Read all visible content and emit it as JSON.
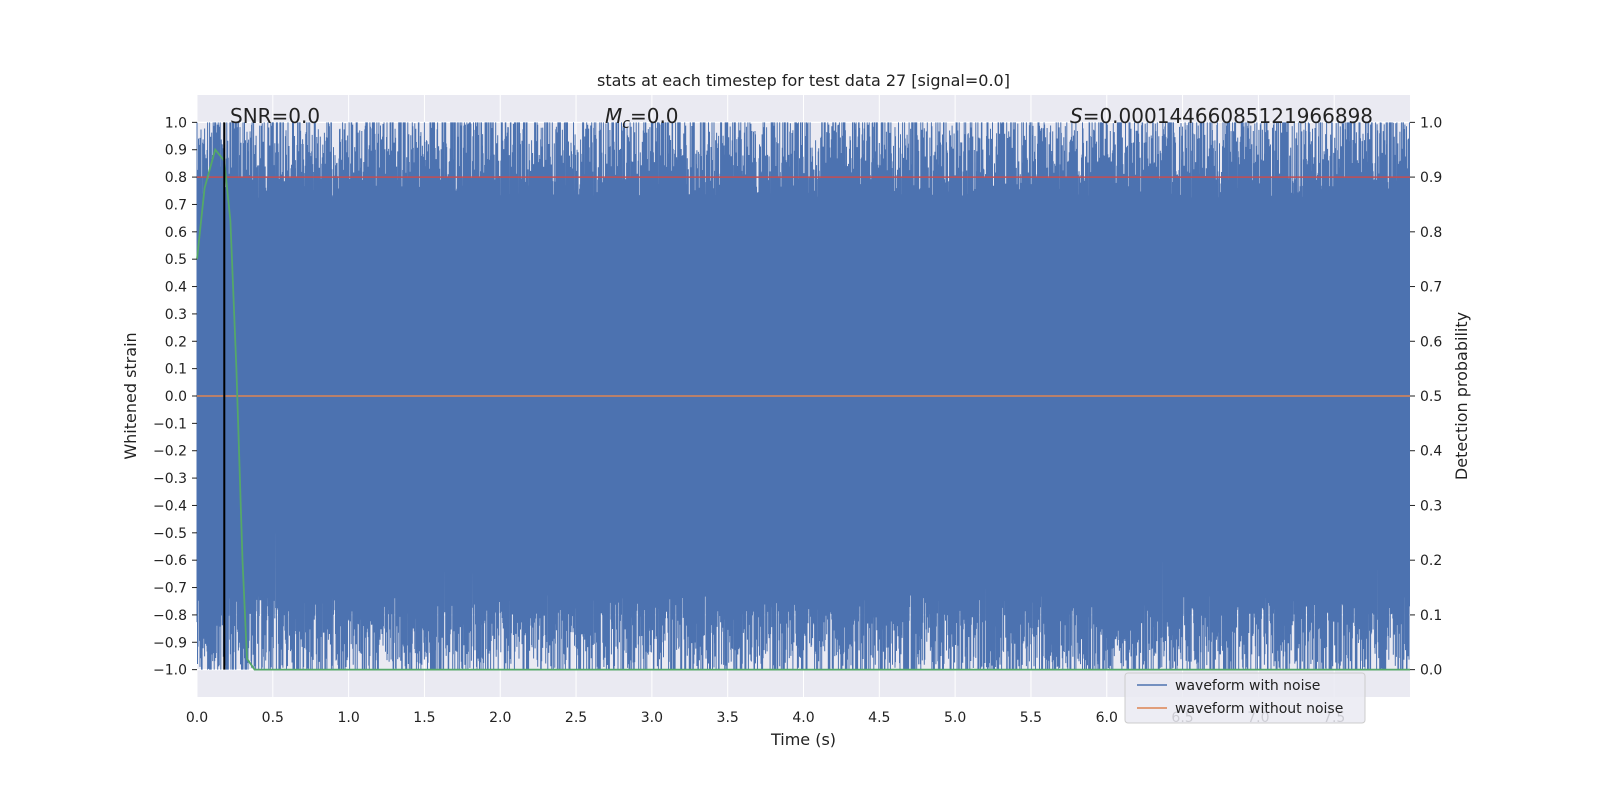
{
  "chart_data": {
    "type": "line",
    "title": "stats at each timestep for test data 27 [signal=0.0]",
    "xlabel": "Time (s)",
    "ylabel": "Whitened strain",
    "ylabel_right": "Detection probability",
    "xlim": [
      0.0,
      8.0
    ],
    "ylim": [
      -1.1,
      1.1
    ],
    "ylim_right": [
      -0.05,
      1.05
    ],
    "grid": true,
    "legend_position": "bottom-right",
    "x_ticks": [
      "0.0",
      "0.5",
      "1.0",
      "1.5",
      "2.0",
      "2.5",
      "3.0",
      "3.5",
      "4.0",
      "4.5",
      "5.0",
      "5.5",
      "6.0",
      "6.5",
      "7.0",
      "7.5"
    ],
    "x_tick_values": [
      0.0,
      0.5,
      1.0,
      1.5,
      2.0,
      2.5,
      3.0,
      3.5,
      4.0,
      4.5,
      5.0,
      5.5,
      6.0,
      6.5,
      7.0,
      7.5
    ],
    "y_ticks": [
      "1.0",
      "0.9",
      "0.8",
      "0.7",
      "0.6",
      "0.5",
      "0.4",
      "0.3",
      "0.2",
      "0.1",
      "0.0",
      "−0.1",
      "−0.2",
      "−0.3",
      "−0.4",
      "−0.5",
      "−0.6",
      "−0.7",
      "−0.8",
      "−0.9",
      "−1.0"
    ],
    "y_tick_values": [
      1.0,
      0.9,
      0.8,
      0.7,
      0.6,
      0.5,
      0.4,
      0.3,
      0.2,
      0.1,
      0.0,
      -0.1,
      -0.2,
      -0.3,
      -0.4,
      -0.5,
      -0.6,
      -0.7,
      -0.8,
      -0.9,
      -1.0
    ],
    "y_right_ticks": [
      "1.0",
      "0.9",
      "0.8",
      "0.7",
      "0.6",
      "0.5",
      "0.4",
      "0.3",
      "0.2",
      "0.1",
      "0.0"
    ],
    "y_right_tick_values": [
      1.0,
      0.9,
      0.8,
      0.7,
      0.6,
      0.5,
      0.4,
      0.3,
      0.2,
      0.1,
      0.0
    ],
    "series": [
      {
        "name": "waveform with noise",
        "color": "#4c72b0",
        "kind": "noise-envelope",
        "x_range": [
          0.0,
          8.0
        ],
        "y_min_typical": -0.9,
        "y_max_typical": 0.9,
        "y_clip": [
          -1.0,
          1.0
        ]
      },
      {
        "name": "waveform without noise",
        "color": "#dd8452",
        "x": [
          0.0,
          8.0
        ],
        "y": [
          0.0,
          0.0
        ]
      },
      {
        "color": "#55a868",
        "axis": "right",
        "x": [
          0.0,
          0.05,
          0.12,
          0.18,
          0.22,
          0.26,
          0.3,
          0.33,
          0.38,
          8.0
        ],
        "y": [
          0.75,
          0.88,
          0.95,
          0.93,
          0.82,
          0.55,
          0.2,
          0.02,
          0.0,
          0.0
        ]
      }
    ],
    "hlines": [
      {
        "axis": "right",
        "y": 0.9,
        "color": "#c44e52"
      }
    ],
    "vlines": [
      {
        "x": 0.18,
        "y_range": [
          -1.0,
          1.0
        ],
        "color": "#000000"
      }
    ],
    "annotations": {
      "snr": "SNR=0.0",
      "mc_symbol": "M",
      "mc_sub": "c",
      "mc_value": "=0.0",
      "s_symbol": "S",
      "s_value": "=0.0001446608512196689​8"
    },
    "legend": [
      "waveform with noise",
      "waveform without noise"
    ]
  }
}
